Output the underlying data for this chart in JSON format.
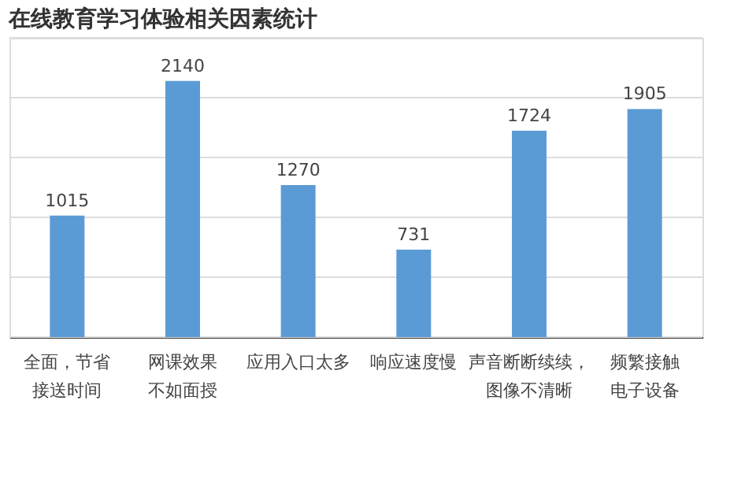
{
  "chart_data": {
    "type": "bar",
    "title": "在线教育学习体验相关因素统计",
    "categories": [
      "全面，节省接送时间",
      "网课效果不如面授",
      "应用入口太多",
      "响应速度慢",
      "声音断断续续，图像不清晰",
      "频繁接触电子设备"
    ],
    "values": [
      1015,
      2140,
      1270,
      731,
      1724,
      1905
    ],
    "color": "#5b9bd5",
    "ylim": [
      0,
      2500
    ],
    "yticks": [
      {
        "value": 0,
        "label": null
      },
      {
        "value": 500,
        "label": null
      },
      {
        "value": 1000,
        "label": null
      },
      {
        "value": 1500,
        "label": null
      },
      {
        "value": 2000,
        "label": null
      },
      {
        "value": 2500,
        "label": null
      }
    ],
    "grid": "y",
    "tick_labels": "x",
    "data_labels": true
  }
}
